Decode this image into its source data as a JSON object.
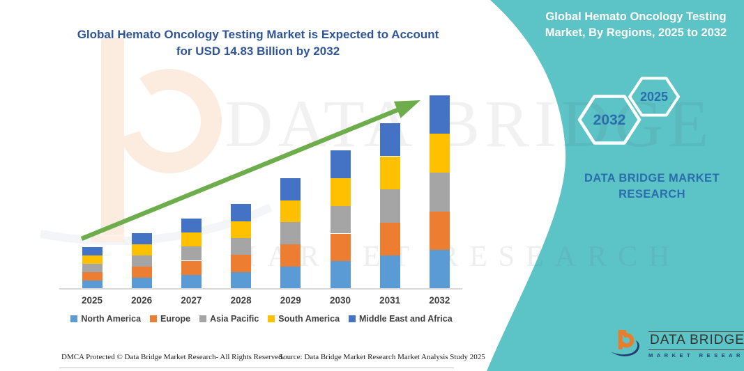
{
  "header": {
    "title_line1": "Global Hemato Oncology Testing Market is Expected to Account",
    "title_line2": "for USD 14.83 Billion by 2032"
  },
  "side_panel": {
    "title_line1": "Global Hemato Oncology Testing",
    "title_line2": "Market, By Regions, 2025 to 2032",
    "hexagons": [
      {
        "label": "2032"
      },
      {
        "label": "2025"
      }
    ],
    "brand_line1": "DATA BRIDGE MARKET",
    "brand_line2": "RESEARCH"
  },
  "watermark": {
    "line1": "DATA BRIDGE",
    "line2": "MARKET RESEARCH"
  },
  "chart_data": {
    "type": "bar",
    "stacked": true,
    "title": "Global Hemato Oncology Testing Market is Expected to Account for USD 14.83 Billion by 2032",
    "unit": "USD Billion",
    "categories": [
      "2025",
      "2026",
      "2027",
      "2028",
      "2029",
      "2030",
      "2031",
      "2032"
    ],
    "series": [
      {
        "name": "North America",
        "color": "#5B9BD5",
        "values": [
          0.64,
          0.85,
          1.08,
          1.3,
          1.7,
          2.12,
          2.54,
          2.97
        ]
      },
      {
        "name": "Europe",
        "color": "#ED7D31",
        "values": [
          0.64,
          0.85,
          1.08,
          1.3,
          1.7,
          2.12,
          2.54,
          2.97
        ]
      },
      {
        "name": "Asia Pacific",
        "color": "#A5A5A5",
        "values": [
          0.64,
          0.85,
          1.08,
          1.3,
          1.7,
          2.12,
          2.54,
          2.97
        ]
      },
      {
        "name": "South America",
        "color": "#FFC000",
        "values": [
          0.64,
          0.85,
          1.08,
          1.3,
          1.7,
          2.12,
          2.54,
          2.97
        ]
      },
      {
        "name": "Middle East and Africa",
        "color": "#4472C4",
        "values": [
          0.64,
          0.85,
          1.08,
          1.3,
          1.7,
          2.12,
          2.54,
          2.97
        ]
      }
    ],
    "totals_estimated": [
      3.2,
      4.25,
      5.4,
      6.5,
      8.5,
      10.6,
      12.7,
      14.83
    ],
    "key_value_label": "USD 14.83 Billion by 2032",
    "ylim": [
      0,
      14.83
    ],
    "gridlines": false,
    "legend_position": "bottom",
    "trend_arrow": true
  },
  "footer": {
    "dmca": "DMCA Protected © Data Bridge Market Research-  All Rights Reserved.",
    "source": "Source: Data Bridge Market Research  Market Analysis Study 2025"
  },
  "logo": {
    "name": "DATA BRIDGE",
    "subtitle": "MARKET RESEARCH"
  },
  "colors": {
    "teal": "#5CC3C6",
    "title_blue": "#2F5597",
    "hex_blue": "#2A6DAD",
    "brand_blue": "#2A6DAD",
    "arrow_green": "#6EAD4B",
    "axis_gray": "#D9D9D9",
    "label_gray": "#3F3F3F",
    "logo_orange": "#E87E2B",
    "logo_navy": "#243E6F"
  }
}
